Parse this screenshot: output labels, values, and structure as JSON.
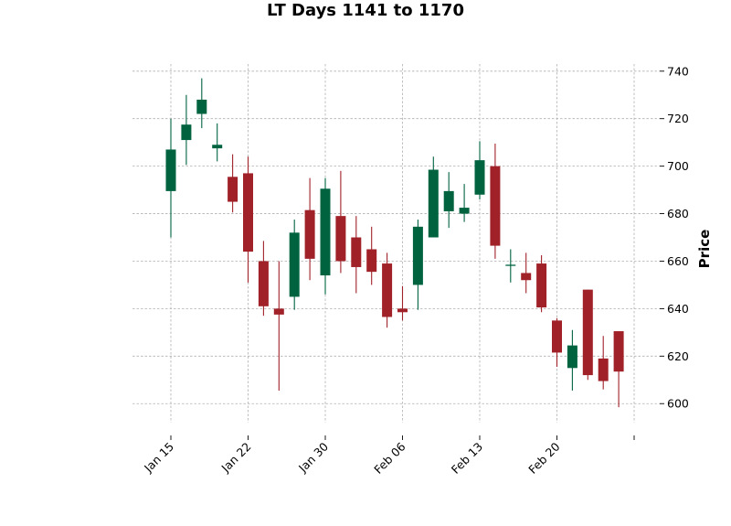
{
  "chart_data": {
    "type": "candlestick",
    "title": "LT Days 1141 to 1170",
    "xlabel": "",
    "ylabel": "Price",
    "ylim": [
      592,
      743
    ],
    "yticks": [
      600,
      620,
      640,
      660,
      680,
      700,
      720,
      740
    ],
    "grid": true,
    "x_tick_labels": [
      {
        "label": "Jan 15",
        "index": 0
      },
      {
        "label": "Jan 22",
        "index": 5
      },
      {
        "label": "Jan 30",
        "index": 10
      },
      {
        "label": "Feb 06",
        "index": 15
      },
      {
        "label": "Feb 13",
        "index": 20
      },
      {
        "label": "Feb 20",
        "index": 25
      },
      {
        "label": "",
        "index": 30
      }
    ],
    "colors": {
      "up": "#006340",
      "down": "#a02128"
    },
    "candles": [
      {
        "open": 689.5,
        "high": 720,
        "low": 670,
        "close": 707
      },
      {
        "open": 711,
        "high": 730,
        "low": 700.5,
        "close": 717.5
      },
      {
        "open": 722,
        "high": 737,
        "low": 716,
        "close": 728
      },
      {
        "open": 707.5,
        "high": 718,
        "low": 702,
        "close": 709
      },
      {
        "open": 695.5,
        "high": 705,
        "low": 680.5,
        "close": 685
      },
      {
        "open": 697,
        "high": 704,
        "low": 651,
        "close": 664
      },
      {
        "open": 660,
        "high": 668.5,
        "low": 637,
        "close": 641
      },
      {
        "open": 640,
        "high": 660,
        "low": 605.5,
        "close": 637.5
      },
      {
        "open": 645,
        "high": 677.5,
        "low": 639.5,
        "close": 672
      },
      {
        "open": 681.5,
        "high": 695,
        "low": 652,
        "close": 661
      },
      {
        "open": 654,
        "high": 695,
        "low": 646,
        "close": 690.5
      },
      {
        "open": 679,
        "high": 698,
        "low": 655,
        "close": 660
      },
      {
        "open": 670,
        "high": 679,
        "low": 646.5,
        "close": 657.5
      },
      {
        "open": 665,
        "high": 674.5,
        "low": 650,
        "close": 655.5
      },
      {
        "open": 659,
        "high": 663.5,
        "low": 632,
        "close": 636.5
      },
      {
        "open": 640,
        "high": 649.5,
        "low": 635,
        "close": 638.5
      },
      {
        "open": 650,
        "high": 677.5,
        "low": 639.5,
        "close": 674.5
      },
      {
        "open": 670,
        "high": 704,
        "low": 670,
        "close": 698.5
      },
      {
        "open": 681,
        "high": 697.5,
        "low": 674,
        "close": 689.5
      },
      {
        "open": 680,
        "high": 692.5,
        "low": 676.5,
        "close": 682.5
      },
      {
        "open": 688,
        "high": 710.5,
        "low": 686,
        "close": 702.5
      },
      {
        "open": 700,
        "high": 709.5,
        "low": 661,
        "close": 666.5
      },
      {
        "open": 658,
        "high": 665,
        "low": 651,
        "close": 658.5
      },
      {
        "open": 655,
        "high": 663.5,
        "low": 646.5,
        "close": 652
      },
      {
        "open": 659,
        "high": 662.5,
        "low": 638.5,
        "close": 640.5
      },
      {
        "open": 635,
        "high": 636,
        "low": 615.5,
        "close": 621.5
      },
      {
        "open": 615,
        "high": 631,
        "low": 605.5,
        "close": 624.5
      },
      {
        "open": 648,
        "high": 648,
        "low": 610,
        "close": 612
      },
      {
        "open": 619,
        "high": 628.5,
        "low": 606,
        "close": 609.5
      },
      {
        "open": 630.5,
        "high": 630.5,
        "low": 598.5,
        "close": 613.5
      }
    ]
  }
}
